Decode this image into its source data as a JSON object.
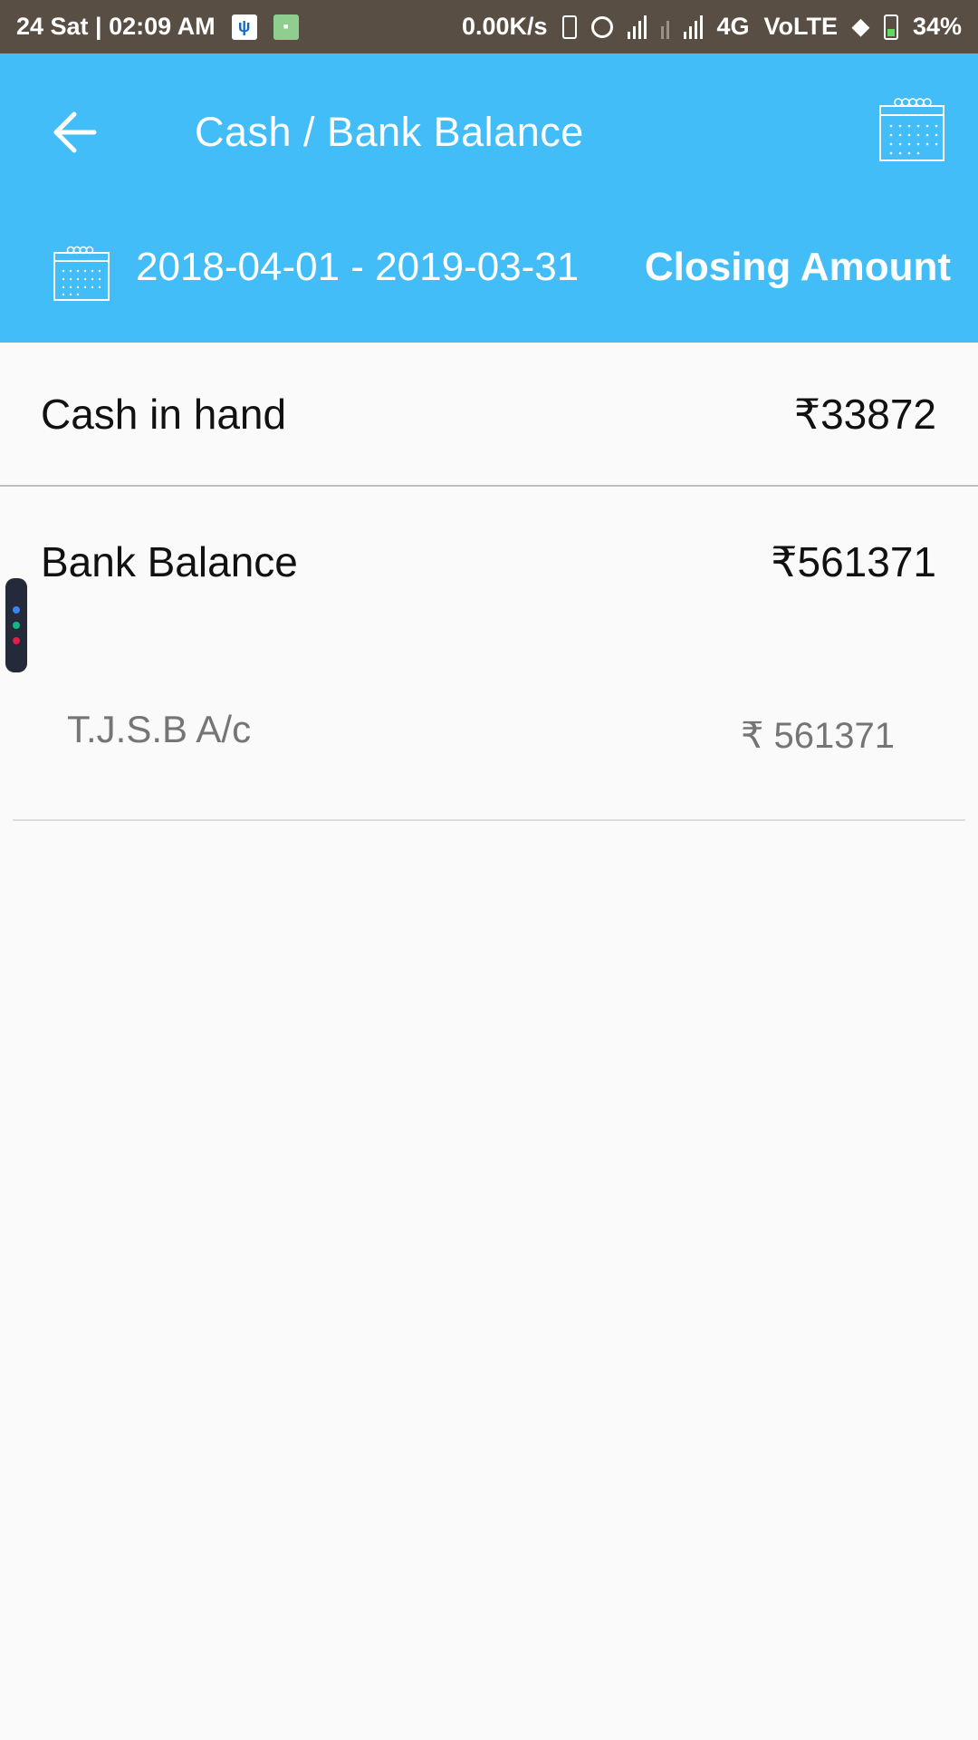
{
  "status_bar": {
    "time": "24 Sat | 02:09 AM",
    "speed": "0.00K/s",
    "network": "4G",
    "volte": "VoLTE",
    "battery": "34%"
  },
  "header": {
    "title": "Cash / Bank Balance",
    "date_range": "2018-04-01 - 2019-03-31",
    "closing_label": "Closing Amount",
    "color": "#42bdf8"
  },
  "rows": [
    {
      "label": "Cash in hand",
      "amount": "₹33872"
    },
    {
      "label": "Bank Balance",
      "amount": "₹561371",
      "accounts": [
        {
          "name": "T.J.S.B A/c",
          "amount": "₹ 561371"
        }
      ]
    }
  ],
  "icons": [
    "back-arrow-icon",
    "calendar-icon",
    "usb-icon",
    "android-icon",
    "signal-icon",
    "battery-icon",
    "location-icon"
  ]
}
